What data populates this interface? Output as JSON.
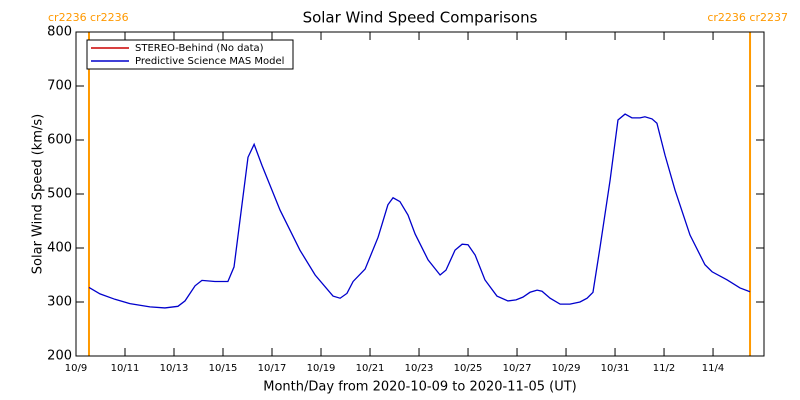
{
  "chart_data": {
    "type": "line",
    "title": "Solar Wind Speed Comparisons",
    "xlabel": "Month/Day from 2020-10-09 to 2020-11-05 (UT)",
    "ylabel": "Solar Wind Speed (km/s)",
    "x": [
      0.53,
      0.98,
      1.59,
      2.2,
      3.02,
      3.63,
      4.16,
      4.45,
      4.86,
      5.14,
      5.67,
      6.2,
      6.45,
      7.02,
      7.27,
      7.59,
      8.33,
      9.14,
      9.76,
      10.49,
      10.78,
      11.06,
      11.31,
      11.8,
      12.33,
      12.73,
      12.94,
      13.22,
      13.55,
      13.84,
      14.37,
      14.86,
      15.1,
      15.47,
      15.76,
      16,
      16.29,
      16.69,
      17.18,
      17.63,
      17.96,
      18.24,
      18.53,
      18.82,
      19.02,
      19.35,
      19.76,
      20.16,
      20.57,
      20.86,
      21.1,
      21.39,
      21.8,
      22.12,
      22.41,
      22.69,
      23.02,
      23.22,
      23.51,
      23.71,
      24.04,
      24.45,
      25.06,
      25.67,
      25.96,
      26.57,
      27.1,
      27.51
    ],
    "series": [
      {
        "name": "STEREO-Behind (No data)",
        "color": "#cc0000",
        "values": [
          null,
          null,
          null,
          null,
          null,
          null,
          null,
          null,
          null,
          null,
          null,
          null,
          null,
          null,
          null,
          null,
          null,
          null,
          null,
          null,
          null,
          null,
          null,
          null,
          null,
          null,
          null,
          null,
          null,
          null,
          null,
          null,
          null,
          null,
          null,
          null,
          null,
          null,
          null,
          null,
          null,
          null,
          null,
          null,
          null,
          null,
          null,
          null,
          null,
          null,
          null,
          null,
          null,
          null,
          null,
          null,
          null,
          null,
          null,
          null,
          null,
          null,
          null,
          null,
          null,
          null,
          null,
          null
        ]
      },
      {
        "name": "Predictive Science MAS Model",
        "color": "#0000cc",
        "values": [
          327,
          315,
          305,
          297,
          291,
          289,
          292,
          302,
          330,
          340,
          338,
          338,
          365,
          568,
          592,
          553,
          470,
          396,
          350,
          311,
          307,
          316,
          338,
          361,
          420,
          480,
          493,
          486,
          461,
          426,
          378,
          350,
          359,
          396,
          407,
          406,
          387,
          341,
          311,
          302,
          304,
          309,
          318,
          322,
          320,
          307,
          296,
          296,
          300,
          307,
          318,
          402,
          526,
          637,
          648,
          641,
          641,
          643,
          639,
          631,
          572,
          507,
          424,
          369,
          356,
          341,
          326,
          319
        ]
      }
    ],
    "xlim": [
      0,
      28.08
    ],
    "xticks": [
      {
        "value": 0,
        "label": "10/9"
      },
      {
        "value": 2,
        "label": "10/11"
      },
      {
        "value": 4,
        "label": "10/13"
      },
      {
        "value": 6,
        "label": "10/15"
      },
      {
        "value": 8,
        "label": "10/17"
      },
      {
        "value": 10,
        "label": "10/19"
      },
      {
        "value": 12,
        "label": "10/21"
      },
      {
        "value": 14,
        "label": "10/23"
      },
      {
        "value": 16,
        "label": "10/25"
      },
      {
        "value": 18,
        "label": "10/27"
      },
      {
        "value": 20,
        "label": "10/29"
      },
      {
        "value": 22,
        "label": "10/31"
      },
      {
        "value": 24,
        "label": "11/2"
      },
      {
        "value": 26,
        "label": "11/4"
      }
    ],
    "ylim": [
      200,
      800
    ],
    "yticks": [
      200,
      300,
      400,
      500,
      600,
      700,
      800
    ],
    "legend": "upper left",
    "boundaries": [
      0.53,
      27.51
    ],
    "boundary_color": "#ff9900",
    "annotations": [
      "cr2236 cr2236",
      "cr2236 cr2237"
    ]
  }
}
